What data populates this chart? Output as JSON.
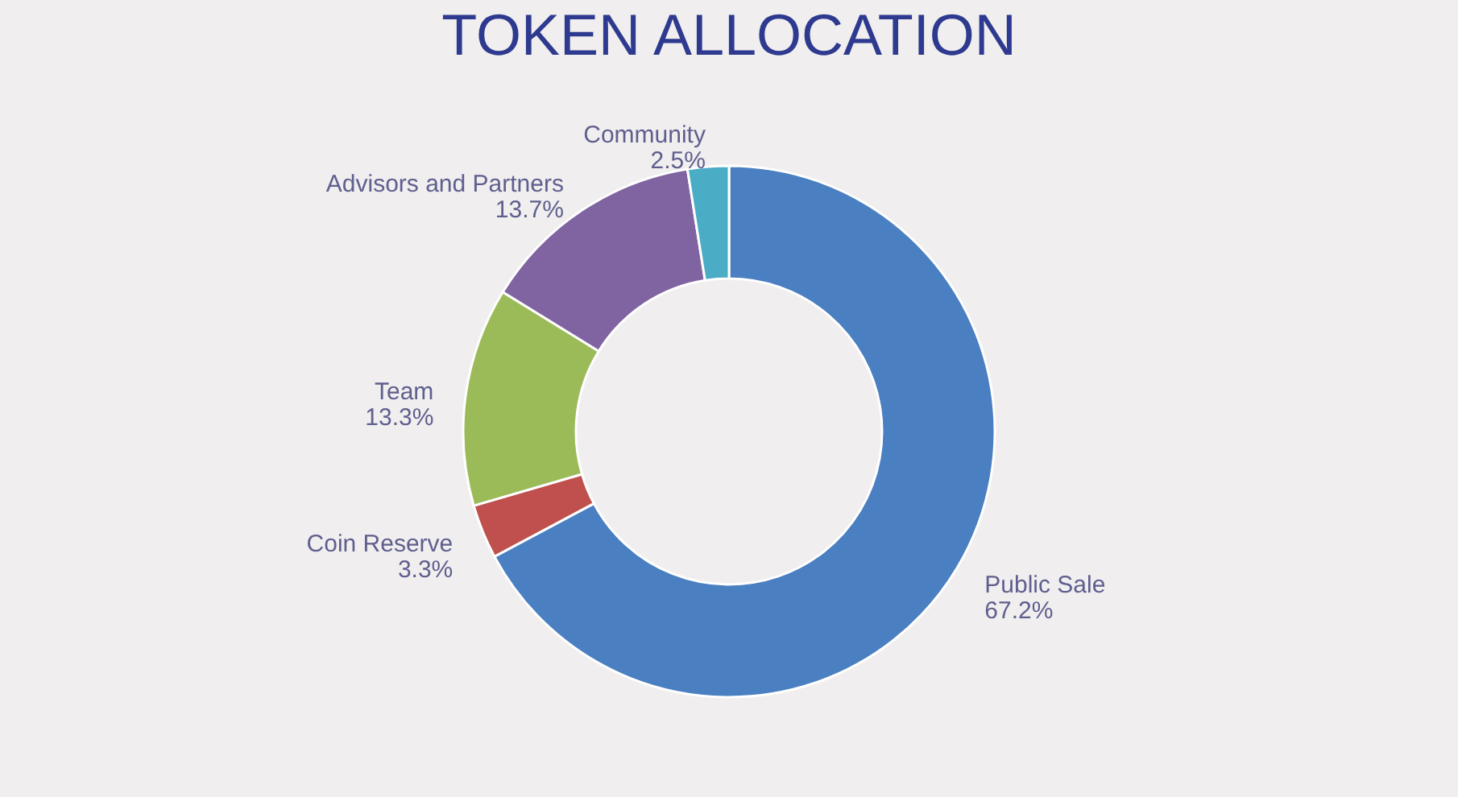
{
  "chart_data": {
    "type": "donut",
    "title": "TOKEN ALLOCATION",
    "categories": [
      "Public Sale",
      "Coin Reserve",
      "Team",
      "Advisors and Partners",
      "Community"
    ],
    "values": [
      67.2,
      3.3,
      13.3,
      13.7,
      2.5
    ],
    "value_labels": [
      "67.2%",
      "3.3%",
      "13.3%",
      "13.7%",
      "2.5%"
    ],
    "colors": [
      "#4a7fc1",
      "#c0504d",
      "#9bbb59",
      "#8064a2",
      "#4bacc6"
    ],
    "legend": false
  }
}
